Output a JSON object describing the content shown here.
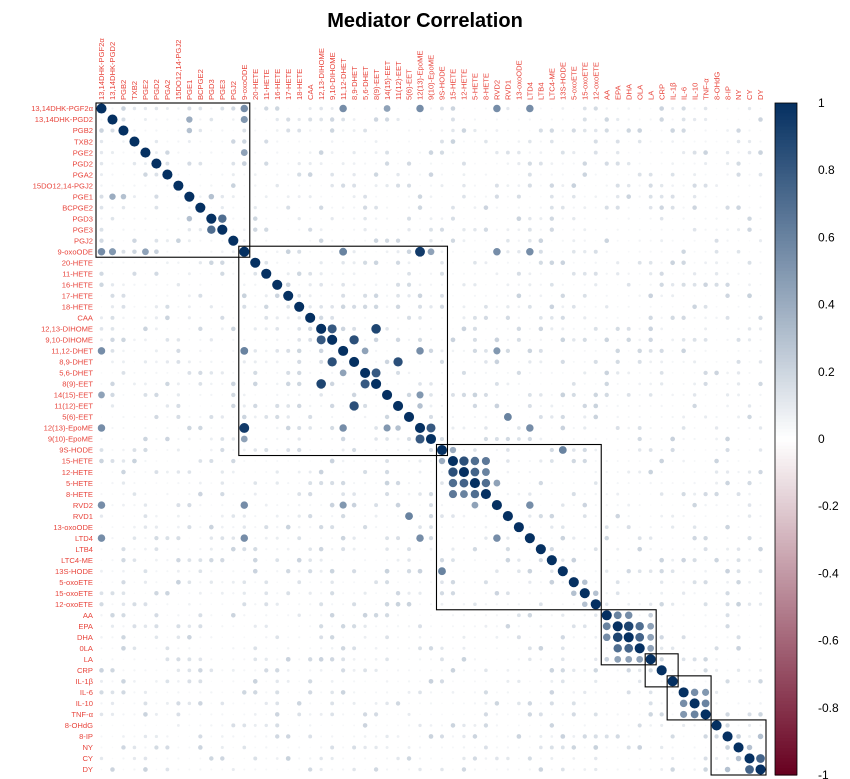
{
  "chart_data": {
    "type": "heatmap",
    "title": "Mediator Correlation",
    "label_color": "#e8453c",
    "variables": [
      "13,14DHK-PGF2α",
      "13,14DHK-PGD2",
      "PGB2",
      "TXB2",
      "PGE2",
      "PGD2",
      "PGA2",
      "15DO12,14-PGJ2",
      "PGE1",
      "BCPGE2",
      "PGD3",
      "PGE3",
      "PGJ2",
      "9-oxoODE",
      "20-HETE",
      "11-HETE",
      "16-HETE",
      "17-HETE",
      "18-HETE",
      "CAA",
      "12,13-DIHOME",
      "9,10-DIHOME",
      "11,12-DHET",
      "8,9-DHET",
      "5,6-DHET",
      "8(9)-EET",
      "14(15)-EET",
      "11(12)-EET",
      "5(6)-EET",
      "12(13)-EpoME",
      "9(10)-EpoME",
      "9S-HODE",
      "15-HETE",
      "12-HETE",
      "5-HETE",
      "8-HETE",
      "RVD2",
      "RVD1",
      "13-oxoODE",
      "LTD4",
      "LTB4",
      "LTC4-ME",
      "13S-HODE",
      "5-oxoETE",
      "15-oxoETE",
      "12-oxoETE",
      "AA",
      "EPA",
      "DHA",
      "0LA",
      "LA",
      "CRP",
      "IL-1β",
      "IL-6",
      "IL-10",
      "TNF-α",
      "8-OHdG",
      "8-IP",
      "NY",
      "CY",
      "DY"
    ],
    "column_labels": [
      "13,14DHK-PGF2α",
      "13,14DHK-PGD2",
      "PGB2",
      "TXB2",
      "PGE2",
      "PGD2",
      "PGA2",
      "15DO12,14-PGJ2",
      "PGE1",
      "BCPGE2",
      "PGD3",
      "PGE3",
      "PGJ2",
      "9-oxoODE",
      "20-HETE",
      "11-HETE",
      "16-HETE",
      "17-HETE",
      "18-HETE",
      "CAA",
      "12,13-DIHOME",
      "9,10-DIHOME",
      "11,12-DHET",
      "8,9-DHET",
      "5,6-DHET",
      "8(9)-EET",
      "14(15)-EET",
      "11(12)-EET",
      "5(6)-EET",
      "12(13)-EpoME",
      "9(10)-EpoME",
      "9S-HODE",
      "15-HETE",
      "12-HETE",
      "5-HETE",
      "8-HETE",
      "RVD2",
      "RVD1",
      "13-oxoODE",
      "LTD4",
      "LTB4",
      "LTC4-ME",
      "13S-HODE",
      "5-oxoETE",
      "15-oxoETE",
      "12-oxoETE",
      "AA",
      "EPA",
      "DHA",
      "OLA",
      "LA",
      "CRP",
      "IL-1β",
      "IL-6",
      "IL-10",
      "TNF-α",
      "8-OHdG",
      "8-IP",
      "NY",
      "CY",
      "DY"
    ],
    "cluster_boxes": [
      {
        "first": "13,14DHK-PGF2α",
        "last": "9-oxoODE"
      },
      {
        "first": "9-oxoODE",
        "last": "9S-HODE"
      },
      {
        "first": "9S-HODE",
        "last": "12-oxoETE"
      },
      {
        "first": "AA",
        "last": "LA"
      },
      {
        "first": "LA",
        "last": "IL-1β"
      },
      {
        "first": "IL-1β",
        "last": "TNF-α"
      },
      {
        "first": "8-OHdG",
        "last": "DY"
      }
    ],
    "strong_pairs": [
      {
        "a": "13,14DHK-PGF2α",
        "b": "9-oxoODE",
        "value": 0.55
      },
      {
        "a": "13,14DHK-PGD2",
        "b": "9-oxoODE",
        "value": 0.5
      },
      {
        "a": "PGE2",
        "b": "9-oxoODE",
        "value": 0.45
      },
      {
        "a": "PGD3",
        "b": "PGE3",
        "value": 0.7
      },
      {
        "a": "PGE1",
        "b": "PGD3",
        "value": 0.3
      },
      {
        "a": "9-oxoODE",
        "b": "12(13)-EpoME",
        "value": 0.95
      },
      {
        "a": "9-oxoODE",
        "b": "11,12-DHET",
        "value": 0.6
      },
      {
        "a": "9-oxoODE",
        "b": "9(10)-EpoME",
        "value": 0.45
      },
      {
        "a": "12,13-DIHOME",
        "b": "9,10-DIHOME",
        "value": 0.8
      },
      {
        "a": "12,13-DIHOME",
        "b": "8(9)-EET",
        "value": 0.9
      },
      {
        "a": "9,10-DIHOME",
        "b": "8,9-DHET",
        "value": 0.85
      },
      {
        "a": "11,12-DHET",
        "b": "5,6-DHET",
        "value": 0.45
      },
      {
        "a": "11,12-DHET",
        "b": "12(13)-EpoME",
        "value": 0.55
      },
      {
        "a": "8,9-DHET",
        "b": "11(12)-EET",
        "value": 0.85
      },
      {
        "a": "5,6-DHET",
        "b": "8(9)-EET",
        "value": 0.8
      },
      {
        "a": "14(15)-EET",
        "b": "12(13)-EpoME",
        "value": 0.5
      },
      {
        "a": "11(12)-EET",
        "b": "12(13)-EpoME",
        "value": 0.3
      },
      {
        "a": "5(6)-EET",
        "b": "RVD1",
        "value": 0.6
      },
      {
        "a": "12(13)-EpoME",
        "b": "9(10)-EpoME",
        "value": 0.8
      },
      {
        "a": "9S-HODE",
        "b": "13S-HODE",
        "value": 0.6
      },
      {
        "a": "9S-HODE",
        "b": "15-HETE",
        "value": 0.4
      },
      {
        "a": "13,14DHK-PGF2α",
        "b": "RVD2",
        "value": 0.55
      },
      {
        "a": "13,14DHK-PGF2α",
        "b": "LTD4",
        "value": 0.55
      },
      {
        "a": "13,14DHK-PGF2α",
        "b": "11,12-DHET",
        "value": 0.55
      },
      {
        "a": "13,14DHK-PGF2α",
        "b": "12(13)-EpoME",
        "value": 0.55
      },
      {
        "a": "13,14DHK-PGF2α",
        "b": "14(15)-EET",
        "value": 0.45
      },
      {
        "a": "PGE1",
        "b": "PGB2",
        "value": 0.3
      },
      {
        "a": "13,14DHK-PGD2",
        "b": "PGE1",
        "value": 0.4
      },
      {
        "a": "15-HETE",
        "b": "12-HETE",
        "value": 0.85
      },
      {
        "a": "15-HETE",
        "b": "5-HETE",
        "value": 0.7
      },
      {
        "a": "15-HETE",
        "b": "8-HETE",
        "value": 0.65
      },
      {
        "a": "12-HETE",
        "b": "5-HETE",
        "value": 0.75
      },
      {
        "a": "12-HETE",
        "b": "8-HETE",
        "value": 0.6
      },
      {
        "a": "5-HETE",
        "b": "8-HETE",
        "value": 0.7
      },
      {
        "a": "5-HETE",
        "b": "RVD2",
        "value": 0.45
      },
      {
        "a": "RVD2",
        "b": "LTD4",
        "value": 0.55
      },
      {
        "a": "RVD2",
        "b": "11,12-DHET",
        "value": 0.5
      },
      {
        "a": "RVD2",
        "b": "9-oxoODE",
        "value": 0.55
      },
      {
        "a": "LTD4",
        "b": "9-oxoODE",
        "value": 0.55
      },
      {
        "a": "LTD4",
        "b": "12(13)-EpoME",
        "value": 0.55
      },
      {
        "a": "5-oxoETE",
        "b": "15-oxoETE",
        "value": 0.3
      },
      {
        "a": "15-oxoETE",
        "b": "12-oxoETE",
        "value": 0.3
      },
      {
        "a": "AA",
        "b": "EPA",
        "value": 0.6
      },
      {
        "a": "AA",
        "b": "DHA",
        "value": 0.55
      },
      {
        "a": "EPA",
        "b": "DHA",
        "value": 0.9
      },
      {
        "a": "EPA",
        "b": "0LA",
        "value": 0.7
      },
      {
        "a": "DHA",
        "b": "0LA",
        "value": 0.75
      },
      {
        "a": "0LA",
        "b": "LA",
        "value": 0.45
      },
      {
        "a": "EPA",
        "b": "LA",
        "value": 0.45
      },
      {
        "a": "DHA",
        "b": "LA",
        "value": 0.45
      },
      {
        "a": "IL-6",
        "b": "IL-10",
        "value": 0.55
      },
      {
        "a": "IL-6",
        "b": "TNF-α",
        "value": 0.5
      },
      {
        "a": "IL-10",
        "b": "TNF-α",
        "value": 0.6
      },
      {
        "a": "CY",
        "b": "DY",
        "value": 0.75
      },
      {
        "a": "NY",
        "b": "CY",
        "value": 0.3
      },
      {
        "a": "8-IP",
        "b": "DY",
        "value": 0.3
      }
    ],
    "colorbar": {
      "ticks": [
        "1",
        "0.8",
        "0.6",
        "0.4",
        "0.2",
        "0",
        "-0.2",
        "-0.4",
        "-0.6",
        "-0.8",
        "-1"
      ],
      "range": [
        -1,
        1
      ],
      "positive_color": "#053061",
      "neutral_color": "#ffffff",
      "negative_color": "#67001f"
    }
  }
}
